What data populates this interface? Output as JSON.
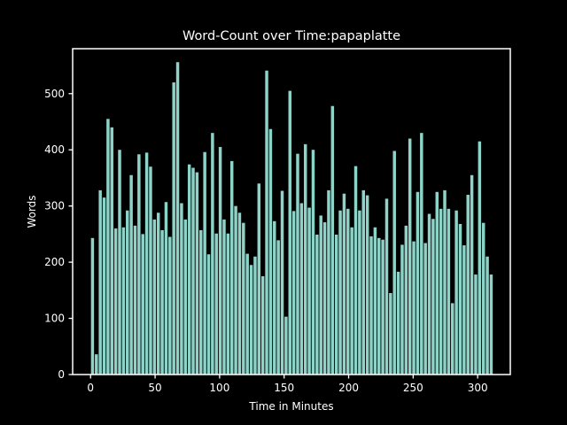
{
  "window": {
    "background": "#000000"
  },
  "chart_data": {
    "type": "bar",
    "title": "Word-Count over Time:papaplatte",
    "xlabel": "Time in Minutes",
    "ylabel": "Words",
    "legend": "none",
    "grid": false,
    "bar_color": "#8dd3c7",
    "text_color": "#ffffff",
    "axis_color": "#ffffff",
    "x_ticks": [
      0,
      50,
      100,
      150,
      200,
      250,
      300
    ],
    "y_ticks": [
      0,
      100,
      200,
      300,
      400,
      500
    ],
    "xlim": [
      -13.9,
      325.3
    ],
    "ylim": [
      0,
      580
    ],
    "bar_step_minutes": 3,
    "x": [
      0,
      3,
      6,
      9,
      12,
      15,
      18,
      21,
      24,
      27,
      30,
      33,
      36,
      39,
      42,
      45,
      48,
      51,
      54,
      57,
      60,
      63,
      66,
      69,
      72,
      75,
      78,
      81,
      84,
      87,
      90,
      93,
      96,
      99,
      102,
      105,
      108,
      111,
      114,
      117,
      120,
      123,
      126,
      129,
      132,
      135,
      138,
      141,
      144,
      147,
      150,
      153,
      156,
      159,
      162,
      165,
      168,
      171,
      174,
      177,
      180,
      183,
      186,
      189,
      192,
      195,
      198,
      201,
      204,
      207,
      210,
      213,
      216,
      219,
      222,
      225,
      228,
      231,
      234,
      237,
      240,
      243,
      246,
      249,
      252,
      255,
      258,
      261,
      264,
      267,
      270,
      273,
      276,
      279,
      282,
      285,
      288,
      291,
      294,
      297,
      300,
      303,
      306,
      309
    ],
    "values": [
      243,
      36,
      328,
      315,
      455,
      440,
      260,
      400,
      262,
      292,
      355,
      265,
      392,
      250,
      395,
      370,
      276,
      288,
      257,
      307,
      245,
      520,
      556,
      305,
      276,
      374,
      368,
      360,
      257,
      396,
      214,
      430,
      251,
      405,
      276,
      251,
      380,
      300,
      288,
      270,
      215,
      195,
      210,
      340,
      175,
      541,
      437,
      273,
      239,
      327,
      103,
      505,
      291,
      393,
      305,
      410,
      297,
      400,
      249,
      283,
      271,
      328,
      478,
      249,
      292,
      322,
      295,
      262,
      371,
      292,
      328,
      319,
      246,
      262,
      243,
      240,
      313,
      145,
      398,
      183,
      231,
      265,
      420,
      237,
      325,
      430,
      234,
      286,
      277,
      325,
      295,
      328,
      295,
      127,
      292,
      268,
      230,
      320,
      355,
      178,
      415,
      270,
      210,
      178
    ]
  }
}
